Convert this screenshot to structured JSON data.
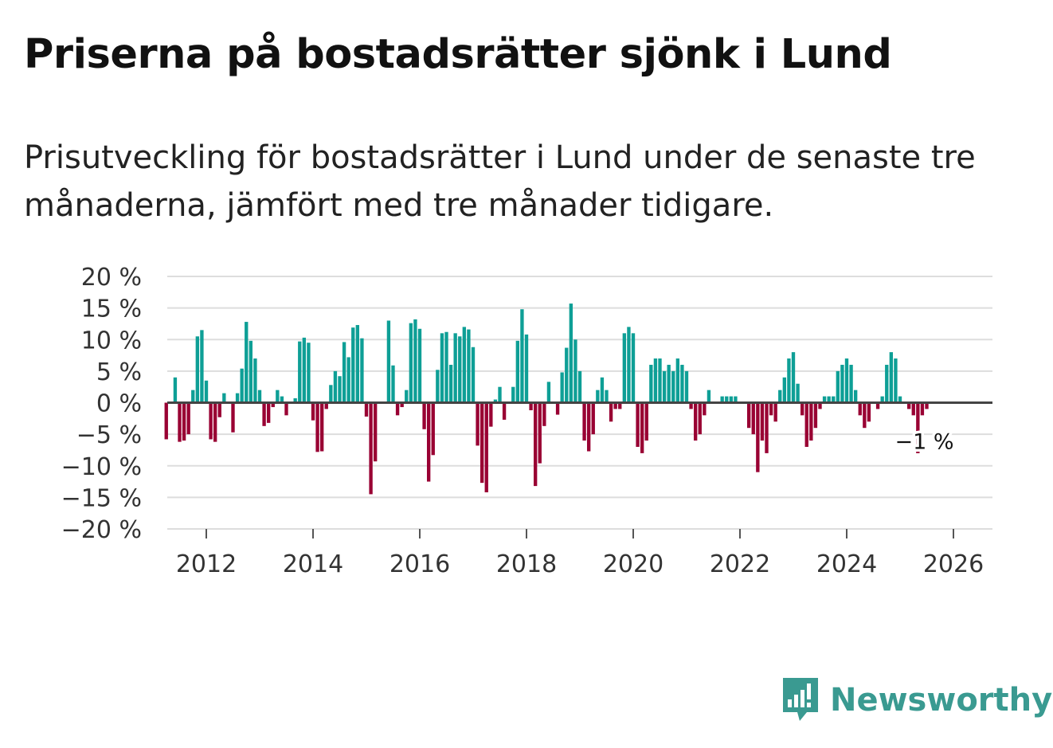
{
  "header": {
    "title": "Priserna på bostadsrätter sjönk i Lund",
    "subtitle": "Prisutveckling för bostadsrätter i Lund under de senaste tre månaderna, jämfört med tre månader tidigare."
  },
  "colors": {
    "positive": "#0e9f96",
    "negative": "#990033",
    "grid": "#dddddd",
    "zero_line": "#444444",
    "brand": "#3a9a91"
  },
  "brand": {
    "name": "Newsworthy",
    "icon": "newsworthy-logo-icon"
  },
  "chart_data": {
    "type": "bar",
    "title": "",
    "xlabel": "",
    "ylabel": "",
    "ylim": [
      -20,
      20
    ],
    "y_ticks": [
      20,
      15,
      10,
      5,
      0,
      -5,
      -10,
      -15,
      -20
    ],
    "y_tick_labels": [
      "20 %",
      "15 %",
      "10 %",
      "5 %",
      "0 %",
      "−5 %",
      "−10 %",
      "−15 %",
      "−20 %"
    ],
    "x_ticks": [
      2012,
      2014,
      2016,
      2018,
      2020,
      2022,
      2024,
      2026
    ],
    "x_tick_labels": [
      "2012",
      "2014",
      "2016",
      "2018",
      "2020",
      "2022",
      "2024",
      "2026"
    ],
    "x_start": 2011.25,
    "x_step_months": 1,
    "values": [
      -5.8,
      0,
      4,
      -6.2,
      -6,
      -5,
      2,
      10.5,
      11.5,
      3.5,
      -5.8,
      -6.2,
      -2.3,
      1.5,
      0,
      -4.7,
      1.5,
      5.4,
      12.8,
      9.8,
      7,
      2,
      -3.7,
      -3.2,
      -0.7,
      2,
      1,
      -2,
      0,
      0.7,
      9.7,
      10.3,
      9.5,
      -2.8,
      -7.8,
      -7.7,
      -1,
      2.8,
      5,
      4.2,
      9.6,
      7.2,
      11.9,
      12.3,
      10.2,
      -2.2,
      -14.5,
      -9.3,
      0,
      0,
      13,
      5.9,
      -2,
      -0.7,
      2,
      12.6,
      13.2,
      11.7,
      -4.2,
      -12.5,
      -8.3,
      5.2,
      11,
      11.2,
      6,
      11,
      10.5,
      12,
      11.6,
      8.8,
      -6.8,
      -12.7,
      -14.2,
      -3.8,
      0.5,
      2.5,
      -2.7,
      0,
      2.5,
      9.8,
      14.8,
      10.8,
      -1.2,
      -13.2,
      -9.6,
      -3.7,
      3.3,
      0,
      -1.9,
      4.8,
      8.7,
      15.7,
      10,
      5,
      -6,
      -7.7,
      -5,
      2,
      4,
      2,
      -3,
      -1,
      -1,
      11,
      12,
      11,
      -7,
      -8,
      -6,
      6,
      7,
      7,
      5,
      6,
      5,
      7,
      6,
      5,
      -1,
      -6,
      -5,
      -2,
      2,
      0,
      0,
      1,
      1,
      1,
      1,
      0,
      0,
      -4,
      -5,
      -11,
      -6,
      -8,
      -2,
      -3,
      2,
      4,
      7,
      8,
      3,
      -2,
      -7,
      -6,
      -4,
      -1,
      1,
      1,
      1,
      5,
      6,
      7,
      6,
      2,
      -2,
      -4,
      -3,
      0,
      -1,
      1,
      6,
      8,
      7,
      1,
      0,
      -1,
      -2,
      -8,
      -2,
      -1
    ],
    "last_value_label": "−1 %"
  }
}
